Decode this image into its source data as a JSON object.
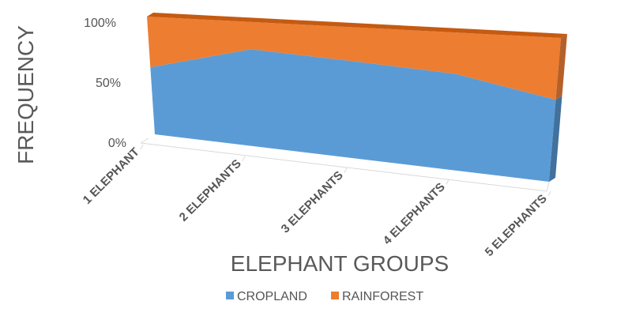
{
  "chart_data": {
    "type": "area",
    "stacked": "percent",
    "three_d": true,
    "title": "",
    "xlabel": "ELEPHANT GROUPS",
    "ylabel": "FREQUENCY",
    "categories": [
      "1 ELEPHANT",
      "2 ELEPHANTS",
      "3 ELEPHANTS",
      "4 ELEPHANTS",
      "5 ELEPHANTS"
    ],
    "series": [
      {
        "name": "CROPLAND",
        "values": [
          57,
          78,
          74,
          70,
          57
        ],
        "color": "#5B9BD5"
      },
      {
        "name": "RAINFOREST",
        "values": [
          43,
          22,
          26,
          30,
          43
        ],
        "color": "#ED7D31"
      }
    ],
    "yticks": [
      "0%",
      "50%",
      "100%"
    ],
    "ylim": [
      0,
      100
    ],
    "legend_position": "bottom",
    "grid": false
  }
}
